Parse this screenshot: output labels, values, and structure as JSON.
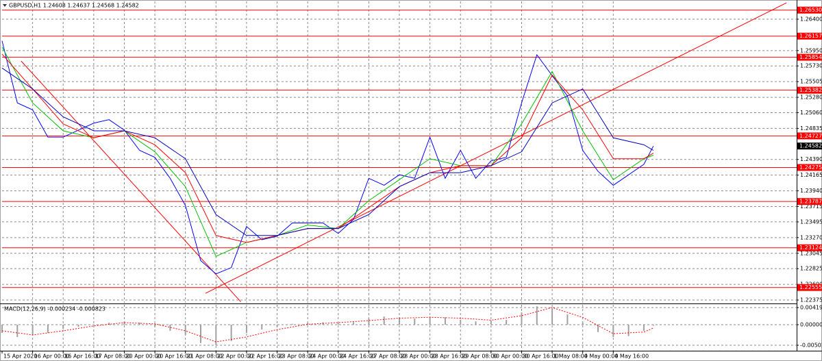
{
  "chart_data": [
    {
      "type": "line",
      "title": "GBPUSD,H1  1.24608 1.24637 1.24568 1.24582",
      "xlim": [
        0,
        416
      ],
      "xticks": [
        {
          "value": 0,
          "label": "15 Apr 2020"
        },
        {
          "value": 16,
          "label": "16 Apr 00:00"
        },
        {
          "value": 32,
          "label": "16 Apr 16:00"
        },
        {
          "value": 48,
          "label": "17 Apr 08:00"
        },
        {
          "value": 64,
          "label": "20 Apr 00:00"
        },
        {
          "value": 80,
          "label": "20 Apr 16:00"
        },
        {
          "value": 96,
          "label": "21 Apr 08:00"
        },
        {
          "value": 112,
          "label": "22 Apr 00:00"
        },
        {
          "value": 128,
          "label": "22 Apr 16:00"
        },
        {
          "value": 144,
          "label": "23 Apr 08:00"
        },
        {
          "value": 160,
          "label": "24 Apr 00:00"
        },
        {
          "value": 176,
          "label": "24 Apr 16:00"
        },
        {
          "value": 192,
          "label": "27 Apr 08:00"
        },
        {
          "value": 208,
          "label": "28 Apr 00:00"
        },
        {
          "value": 224,
          "label": "28 Apr 16:00"
        },
        {
          "value": 240,
          "label": "29 Apr 08:00"
        },
        {
          "value": 256,
          "label": "30 Apr 00:00"
        },
        {
          "value": 272,
          "label": "30 Apr 16:00"
        },
        {
          "value": 288,
          "label": "1 May 08:00"
        },
        {
          "value": 304,
          "label": "4 May 00:00"
        },
        {
          "value": 320,
          "label": "4 May 16:00"
        }
      ],
      "ylim": [
        1.22336,
        1.26655
      ],
      "yticks": [
        {
          "value": 1.264,
          "label": "1.26400"
        },
        {
          "value": 1.2595,
          "label": "1.25950"
        },
        {
          "value": 1.2573,
          "label": "1.25730"
        },
        1.25505,
        {
          "value": 1.2528,
          "label": "1.25280"
        },
        {
          "value": 1.2506,
          "label": "1.25060"
        },
        1.24835,
        {
          "value": 1.2439,
          "label": "1.24390"
        },
        1.24165,
        {
          "value": 1.2394,
          "label": "1.23940"
        },
        1.23715,
        1.23495,
        {
          "value": 1.2327,
          "label": "1.23270"
        },
        1.23045,
        1.22825,
        {
          "value": 1.226,
          "label": "1.22600"
        },
        1.22375
      ],
      "grid": true,
      "series": [
        {
          "color": "#0000ff",
          "x": [
            0,
            8,
            16,
            24,
            32,
            40,
            48,
            56,
            64,
            72,
            80,
            88,
            96,
            104,
            112,
            120,
            128,
            136,
            144,
            152,
            160,
            168,
            176,
            184,
            192,
            200,
            208,
            216,
            224,
            232,
            240,
            248,
            256,
            264,
            272,
            280,
            288,
            296,
            304,
            312,
            320,
            328,
            336,
            341
          ],
          "values": [
            1.2609,
            1.252,
            1.251,
            1.2471,
            1.2471,
            1.2481,
            1.2491,
            1.2496,
            1.2481,
            1.2452,
            1.2442,
            1.2412,
            1.2373,
            1.2294,
            1.2275,
            1.2284,
            1.2343,
            1.2324,
            1.2329,
            1.2348,
            1.2348,
            1.2348,
            1.2333,
            1.2353,
            1.2412,
            1.2402,
            1.2417,
            1.2412,
            1.2471,
            1.2412,
            1.2452,
            1.2412,
            1.2437,
            1.2442,
            1.252,
            1.2589,
            1.2559,
            1.253,
            1.2452,
            1.2422,
            1.2402,
            1.2417,
            1.2432,
            1.24582
          ]
        },
        {
          "color": "#00c000",
          "x": [
            0,
            16,
            32,
            48,
            64,
            80,
            96,
            112,
            128,
            144,
            160,
            176,
            192,
            208,
            224,
            240,
            256,
            272,
            288,
            304,
            320,
            336,
            341
          ],
          "values": [
            1.26,
            1.252,
            1.248,
            1.247,
            1.248,
            1.245,
            1.24,
            1.23,
            1.232,
            1.233,
            1.2345,
            1.234,
            1.238,
            1.241,
            1.244,
            1.243,
            1.243,
            1.249,
            1.2565,
            1.248,
            1.241,
            1.244,
            1.2445
          ]
        },
        {
          "color": "#ff0000",
          "x": [
            0,
            16,
            32,
            48,
            64,
            80,
            96,
            112,
            128,
            144,
            160,
            176,
            192,
            208,
            224,
            240,
            256,
            272,
            288,
            304,
            320,
            336,
            341
          ],
          "values": [
            1.259,
            1.254,
            1.249,
            1.247,
            1.248,
            1.246,
            1.242,
            1.233,
            1.232,
            1.233,
            1.234,
            1.234,
            1.237,
            1.24,
            1.242,
            1.243,
            1.243,
            1.247,
            1.256,
            1.251,
            1.244,
            1.244,
            1.2448
          ]
        },
        {
          "color": "#0000c0",
          "x": [
            0,
            16,
            32,
            48,
            64,
            80,
            96,
            112,
            128,
            144,
            160,
            176,
            192,
            208,
            224,
            240,
            256,
            272,
            288,
            304,
            320,
            336,
            341
          ],
          "values": [
            1.257,
            1.254,
            1.25,
            1.248,
            1.248,
            1.247,
            1.244,
            1.236,
            1.233,
            1.233,
            1.234,
            1.234,
            1.236,
            1.24,
            1.242,
            1.242,
            1.243,
            1.245,
            1.252,
            1.254,
            1.247,
            1.246,
            1.2452
          ]
        }
      ],
      "levels": [
        {
          "value": 1.2653,
          "label": "1.26530"
        },
        1.26157,
        1.25854,
        1.25382,
        1.24727,
        1.24275,
        1.23787,
        1.23124,
        1.22555
      ],
      "level_color": "#ff0000",
      "last": 1.24582,
      "trendlines": [
        {
          "color": "#ff0000",
          "x": [
            106.5,
            410.7
          ],
          "y": [
            1.22472,
            1.26635
          ]
        },
        {
          "color": "#ff0000",
          "x": [
            10,
            125
          ],
          "y": [
            1.258,
            1.2235
          ]
        }
      ]
    },
    {
      "type": "bar",
      "title": "MACD(12,26,9) -0.000234 -0.000823",
      "xlim": [
        0,
        416
      ],
      "ylim": [
        -0.00637,
        0.00486
      ],
      "yticks": [
        0.004191,
        {
          "value": 0,
          "label": "0.000000"
        },
        -0.005029
      ],
      "color": "#a0a0a0",
      "x": [
        0,
        8,
        16,
        24,
        32,
        40,
        48,
        56,
        64,
        72,
        80,
        88,
        96,
        104,
        112,
        120,
        128,
        136,
        144,
        152,
        160,
        168,
        176,
        184,
        192,
        200,
        208,
        216,
        224,
        232,
        240,
        248,
        256,
        264,
        272,
        280,
        288,
        296,
        304,
        312,
        320,
        328,
        336,
        341
      ],
      "values": [
        -0.002,
        -0.003,
        -0.0025,
        -0.002,
        -0.001,
        -0.0005,
        0,
        0.0005,
        0.0008,
        0.0005,
        -0.0005,
        -0.0015,
        -0.0025,
        -0.0045,
        -0.005,
        -0.004,
        -0.002,
        -0.0012,
        -0.0005,
        0.0002,
        0.0005,
        0.0006,
        0.0004,
        0.0006,
        0.0015,
        0.002,
        0.0018,
        0.0015,
        0.002,
        0.0018,
        0.0012,
        0.0008,
        0.001,
        0.0012,
        0.003,
        0.0045,
        0.004,
        0.0025,
        0.0005,
        -0.0018,
        -0.003,
        -0.0028,
        -0.0015,
        -0.000234
      ],
      "signal": {
        "color": "#ff0000",
        "x": [
          0,
          16,
          32,
          48,
          64,
          80,
          96,
          112,
          128,
          144,
          160,
          176,
          192,
          208,
          224,
          240,
          256,
          272,
          288,
          304,
          320,
          336,
          341
        ],
        "values": [
          -0.0015,
          -0.0025,
          -0.0015,
          -0.0003,
          0.0005,
          0.0002,
          -0.0015,
          -0.0042,
          -0.003,
          -0.0012,
          0.0001,
          0.0005,
          0.001,
          0.0016,
          0.0018,
          0.0016,
          0.0011,
          0.0022,
          0.0042,
          0.0018,
          -0.0022,
          -0.0018,
          -0.000823
        ]
      }
    }
  ]
}
